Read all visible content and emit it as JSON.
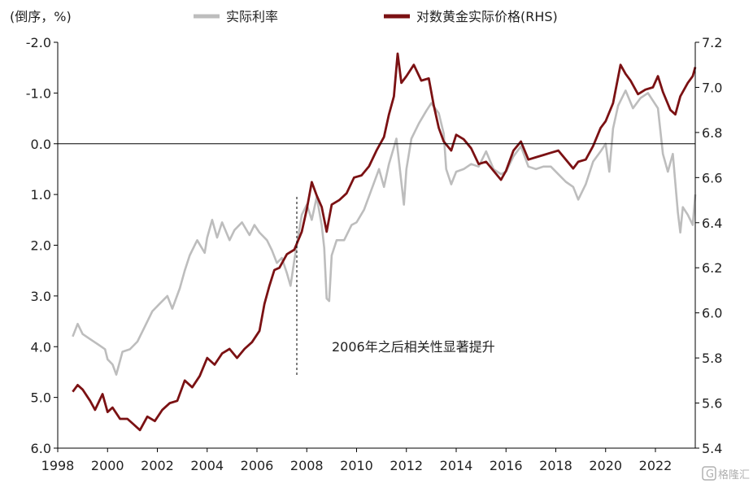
{
  "chart_data": {
    "type": "line",
    "left_axis_label": "(倒序，%)",
    "legend": [
      "实际利率",
      "对数黄金实际价格(RHS)"
    ],
    "annotation": "2006年之后相关性显著提升",
    "watermark": "格隆汇",
    "x_ticks": [
      "1998",
      "2000",
      "2002",
      "2004",
      "2006",
      "2008",
      "2010",
      "2012",
      "2014",
      "2016",
      "2018",
      "2020",
      "2022"
    ],
    "x_range": [
      1998,
      2023.6
    ],
    "y_left": {
      "inverted": true,
      "range": [
        -2.0,
        6.0
      ],
      "ticks": [
        "-2.0",
        "-1.0",
        "0.0",
        "1.0",
        "2.0",
        "3.0",
        "4.0",
        "5.0",
        "6.0"
      ],
      "ref_line_value": 0.0
    },
    "y_right": {
      "range": [
        5.4,
        7.2
      ],
      "ticks": [
        "7.2",
        "7.0",
        "6.8",
        "6.6",
        "6.4",
        "6.2",
        "6.0",
        "5.8",
        "5.6",
        "5.4"
      ]
    },
    "annotation_marker_x": 2007.6,
    "colors": {
      "real_rate": "#bdbdbd",
      "gold": "#7b1113"
    },
    "series": [
      {
        "name": "实际利率",
        "axis": "left",
        "points": [
          [
            1998.6,
            3.8
          ],
          [
            1998.8,
            3.55
          ],
          [
            1999.0,
            3.75
          ],
          [
            1999.3,
            3.85
          ],
          [
            1999.6,
            3.95
          ],
          [
            1999.9,
            4.05
          ],
          [
            2000.0,
            4.25
          ],
          [
            2000.2,
            4.35
          ],
          [
            2000.35,
            4.55
          ],
          [
            2000.6,
            4.1
          ],
          [
            2000.9,
            4.05
          ],
          [
            2001.2,
            3.9
          ],
          [
            2001.5,
            3.6
          ],
          [
            2001.8,
            3.3
          ],
          [
            2002.1,
            3.15
          ],
          [
            2002.4,
            3.0
          ],
          [
            2002.6,
            3.25
          ],
          [
            2002.9,
            2.85
          ],
          [
            2003.1,
            2.5
          ],
          [
            2003.3,
            2.2
          ],
          [
            2003.6,
            1.9
          ],
          [
            2003.9,
            2.15
          ],
          [
            2004.0,
            1.85
          ],
          [
            2004.2,
            1.5
          ],
          [
            2004.4,
            1.85
          ],
          [
            2004.6,
            1.55
          ],
          [
            2004.9,
            1.9
          ],
          [
            2005.1,
            1.7
          ],
          [
            2005.4,
            1.55
          ],
          [
            2005.7,
            1.8
          ],
          [
            2005.9,
            1.6
          ],
          [
            2006.1,
            1.75
          ],
          [
            2006.4,
            1.9
          ],
          [
            2006.6,
            2.1
          ],
          [
            2006.8,
            2.35
          ],
          [
            2007.0,
            2.25
          ],
          [
            2007.2,
            2.55
          ],
          [
            2007.35,
            2.8
          ],
          [
            2007.5,
            2.3
          ],
          [
            2007.8,
            1.4
          ],
          [
            2008.0,
            1.2
          ],
          [
            2008.2,
            1.5
          ],
          [
            2008.4,
            1.05
          ],
          [
            2008.6,
            1.6
          ],
          [
            2008.7,
            2.05
          ],
          [
            2008.8,
            3.05
          ],
          [
            2008.9,
            3.1
          ],
          [
            2009.0,
            2.2
          ],
          [
            2009.2,
            1.9
          ],
          [
            2009.5,
            1.9
          ],
          [
            2009.8,
            1.6
          ],
          [
            2010.0,
            1.55
          ],
          [
            2010.3,
            1.3
          ],
          [
            2010.6,
            0.9
          ],
          [
            2010.9,
            0.5
          ],
          [
            2011.1,
            0.85
          ],
          [
            2011.3,
            0.4
          ],
          [
            2011.6,
            -0.1
          ],
          [
            2011.9,
            1.2
          ],
          [
            2012.0,
            0.5
          ],
          [
            2012.2,
            -0.1
          ],
          [
            2012.5,
            -0.4
          ],
          [
            2012.8,
            -0.65
          ],
          [
            2013.0,
            -0.8
          ],
          [
            2013.3,
            -0.6
          ],
          [
            2013.5,
            -0.2
          ],
          [
            2013.6,
            0.5
          ],
          [
            2013.8,
            0.8
          ],
          [
            2014.0,
            0.55
          ],
          [
            2014.3,
            0.5
          ],
          [
            2014.6,
            0.4
          ],
          [
            2014.9,
            0.45
          ],
          [
            2015.2,
            0.15
          ],
          [
            2015.5,
            0.5
          ],
          [
            2015.8,
            0.6
          ],
          [
            2016.0,
            0.55
          ],
          [
            2016.3,
            0.25
          ],
          [
            2016.6,
            0.05
          ],
          [
            2016.9,
            0.45
          ],
          [
            2017.2,
            0.5
          ],
          [
            2017.5,
            0.45
          ],
          [
            2017.8,
            0.45
          ],
          [
            2018.1,
            0.6
          ],
          [
            2018.4,
            0.75
          ],
          [
            2018.7,
            0.85
          ],
          [
            2018.9,
            1.1
          ],
          [
            2019.2,
            0.8
          ],
          [
            2019.5,
            0.35
          ],
          [
            2019.8,
            0.15
          ],
          [
            2020.0,
            0.0
          ],
          [
            2020.15,
            0.55
          ],
          [
            2020.3,
            -0.3
          ],
          [
            2020.5,
            -0.75
          ],
          [
            2020.8,
            -1.05
          ],
          [
            2021.1,
            -0.7
          ],
          [
            2021.4,
            -0.9
          ],
          [
            2021.7,
            -1.0
          ],
          [
            2021.9,
            -0.85
          ],
          [
            2022.1,
            -0.7
          ],
          [
            2022.3,
            0.2
          ],
          [
            2022.5,
            0.55
          ],
          [
            2022.7,
            0.2
          ],
          [
            2022.9,
            1.35
          ],
          [
            2023.0,
            1.75
          ],
          [
            2023.1,
            1.25
          ],
          [
            2023.3,
            1.4
          ],
          [
            2023.5,
            1.6
          ],
          [
            2023.6,
            1.0
          ]
        ]
      },
      {
        "name": "对数黄金实际价格(RHS)",
        "axis": "right",
        "points": [
          [
            1998.6,
            5.65
          ],
          [
            1998.8,
            5.68
          ],
          [
            1999.0,
            5.66
          ],
          [
            1999.3,
            5.61
          ],
          [
            1999.5,
            5.57
          ],
          [
            1999.8,
            5.64
          ],
          [
            2000.0,
            5.56
          ],
          [
            2000.2,
            5.58
          ],
          [
            2000.5,
            5.53
          ],
          [
            2000.8,
            5.53
          ],
          [
            2001.0,
            5.51
          ],
          [
            2001.3,
            5.48
          ],
          [
            2001.6,
            5.54
          ],
          [
            2001.9,
            5.52
          ],
          [
            2002.2,
            5.57
          ],
          [
            2002.5,
            5.6
          ],
          [
            2002.8,
            5.61
          ],
          [
            2003.1,
            5.7
          ],
          [
            2003.4,
            5.67
          ],
          [
            2003.7,
            5.72
          ],
          [
            2004.0,
            5.8
          ],
          [
            2004.3,
            5.77
          ],
          [
            2004.6,
            5.82
          ],
          [
            2004.9,
            5.84
          ],
          [
            2005.2,
            5.8
          ],
          [
            2005.5,
            5.84
          ],
          [
            2005.8,
            5.87
          ],
          [
            2006.1,
            5.92
          ],
          [
            2006.3,
            6.04
          ],
          [
            2006.5,
            6.12
          ],
          [
            2006.7,
            6.19
          ],
          [
            2006.9,
            6.2
          ],
          [
            2007.2,
            6.26
          ],
          [
            2007.5,
            6.28
          ],
          [
            2007.8,
            6.36
          ],
          [
            2008.0,
            6.46
          ],
          [
            2008.2,
            6.58
          ],
          [
            2008.4,
            6.52
          ],
          [
            2008.6,
            6.47
          ],
          [
            2008.8,
            6.36
          ],
          [
            2009.0,
            6.48
          ],
          [
            2009.3,
            6.5
          ],
          [
            2009.6,
            6.53
          ],
          [
            2009.9,
            6.6
          ],
          [
            2010.2,
            6.61
          ],
          [
            2010.5,
            6.65
          ],
          [
            2010.8,
            6.72
          ],
          [
            2011.1,
            6.78
          ],
          [
            2011.3,
            6.88
          ],
          [
            2011.5,
            6.96
          ],
          [
            2011.65,
            7.15
          ],
          [
            2011.8,
            7.02
          ],
          [
            2012.0,
            7.05
          ],
          [
            2012.3,
            7.1
          ],
          [
            2012.6,
            7.03
          ],
          [
            2012.9,
            7.04
          ],
          [
            2013.1,
            6.92
          ],
          [
            2013.3,
            6.82
          ],
          [
            2013.5,
            6.76
          ],
          [
            2013.8,
            6.72
          ],
          [
            2014.0,
            6.79
          ],
          [
            2014.3,
            6.77
          ],
          [
            2014.6,
            6.73
          ],
          [
            2014.9,
            6.66
          ],
          [
            2015.2,
            6.67
          ],
          [
            2015.5,
            6.63
          ],
          [
            2015.8,
            6.59
          ],
          [
            2016.0,
            6.63
          ],
          [
            2016.3,
            6.72
          ],
          [
            2016.6,
            6.76
          ],
          [
            2016.9,
            6.68
          ],
          [
            2017.2,
            6.69
          ],
          [
            2017.5,
            6.7
          ],
          [
            2017.8,
            6.71
          ],
          [
            2018.1,
            6.72
          ],
          [
            2018.4,
            6.68
          ],
          [
            2018.7,
            6.64
          ],
          [
            2018.9,
            6.67
          ],
          [
            2019.2,
            6.68
          ],
          [
            2019.5,
            6.74
          ],
          [
            2019.8,
            6.82
          ],
          [
            2020.0,
            6.85
          ],
          [
            2020.3,
            6.93
          ],
          [
            2020.6,
            7.1
          ],
          [
            2020.8,
            7.06
          ],
          [
            2021.0,
            7.03
          ],
          [
            2021.3,
            6.97
          ],
          [
            2021.6,
            6.99
          ],
          [
            2021.9,
            7.0
          ],
          [
            2022.1,
            7.05
          ],
          [
            2022.3,
            6.98
          ],
          [
            2022.6,
            6.9
          ],
          [
            2022.8,
            6.88
          ],
          [
            2023.0,
            6.96
          ],
          [
            2023.3,
            7.02
          ],
          [
            2023.5,
            7.05
          ],
          [
            2023.6,
            7.09
          ]
        ]
      }
    ]
  }
}
